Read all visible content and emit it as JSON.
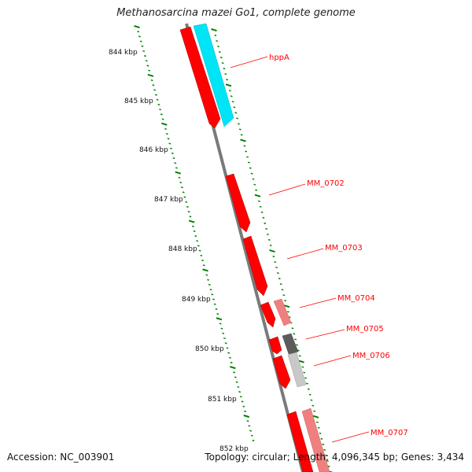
{
  "title": "Methanosarcina mazei Go1, complete genome",
  "footer": {
    "accession": "Accession: NC_003901",
    "topology": "Topology: circular; Length: 4,096,345 bp; Genes: 3,434"
  },
  "ruler_ticks": [
    "844 kbp",
    "845 kbp",
    "846 kbp",
    "847 kbp",
    "848 kbp",
    "849 kbp",
    "850 kbp",
    "851 kbp",
    "852 kbp"
  ],
  "genes": [
    {
      "label": "hppA",
      "strand": "both",
      "color_outer": "#ff0000",
      "color_inner": "#00ffff"
    },
    {
      "label": "MM_0702",
      "strand": "forward",
      "color_outer": "#ff0000"
    },
    {
      "label": "MM_0703",
      "strand": "forward",
      "color_outer": "#ff0000"
    },
    {
      "label": "MM_0704",
      "strand": "forward",
      "color_outer": "#ff0000",
      "color_inner": "#f08080"
    },
    {
      "label": "MM_0705",
      "strand": "forward",
      "color_outer": "#ff0000",
      "color_inner": "#666666"
    },
    {
      "label": "MM_0706",
      "strand": "forward",
      "color_outer": "#ff0000",
      "color_inner": "#c8c8c8"
    },
    {
      "label": "MM_0707",
      "strand": "forward",
      "color_outer": "#ff0000",
      "color_inner": "#f08080"
    }
  ],
  "colors": {
    "backbone": "#7f7f7f",
    "ruler": "#008000",
    "label": "#ff0000"
  }
}
